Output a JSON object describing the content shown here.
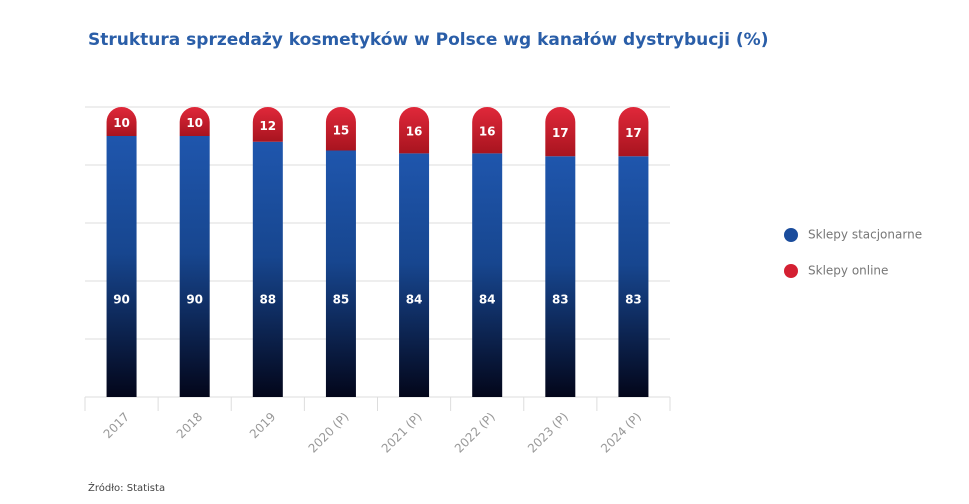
{
  "chart_data": {
    "type": "stacked-bar",
    "title": "Struktura sprzedaży kosmetyków w Polsce wg kanałów dystrybucji (%)",
    "categories": [
      "2017",
      "2018",
      "2019",
      "2020 (P)",
      "2021 (P)",
      "2022 (P)",
      "2023 (P)",
      "2024 (P)"
    ],
    "series": [
      {
        "name": "Sklepy stacjonarne",
        "color": "#1a4c9c",
        "values": [
          90,
          90,
          88,
          85,
          84,
          84,
          83,
          83
        ]
      },
      {
        "name": "Sklepy online",
        "color": "#d42032",
        "values": [
          10,
          10,
          12,
          15,
          16,
          16,
          17,
          17
        ]
      }
    ],
    "ylim": [
      0,
      100
    ],
    "yticks": [
      0,
      20,
      40,
      60,
      80,
      100
    ],
    "grid": true,
    "source": "Źródło: Statista"
  }
}
